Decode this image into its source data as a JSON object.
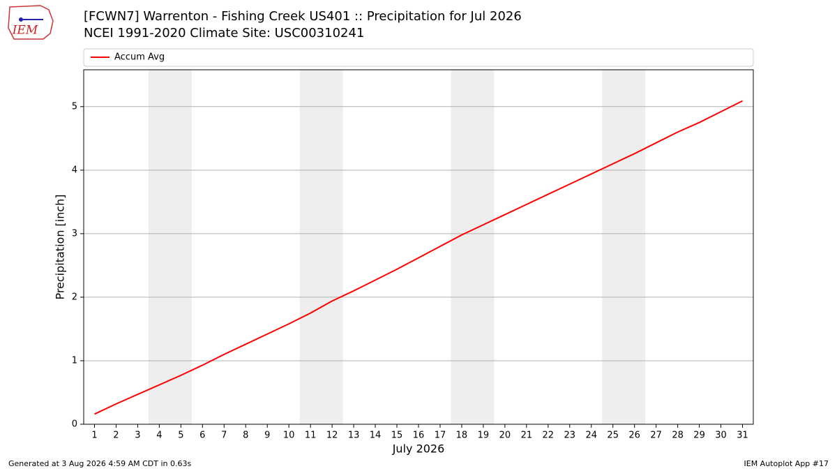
{
  "logo": "IEM",
  "footer": {
    "left": "Generated at 3 Aug 2026 4:59 AM CDT in 0.63s",
    "right": "IEM Autoplot App #17"
  },
  "chart_data": {
    "type": "line",
    "title": "[FCWN7] Warrenton - Fishing Creek US401 :: Precipitation for Jul 2026",
    "subtitle": "NCEI 1991-2020 Climate Site: USC00310241",
    "x_label": "July 2026",
    "y_label": "Precipitation [inch]",
    "x": [
      1,
      2,
      3,
      4,
      5,
      6,
      7,
      8,
      9,
      10,
      11,
      12,
      13,
      14,
      15,
      16,
      17,
      18,
      19,
      20,
      21,
      22,
      23,
      24,
      25,
      26,
      27,
      28,
      29,
      30,
      31
    ],
    "series": [
      {
        "name": "Accum Avg",
        "color": "#ff0000",
        "values": [
          0.16,
          0.32,
          0.47,
          0.62,
          0.77,
          0.93,
          1.1,
          1.26,
          1.42,
          1.58,
          1.75,
          1.94,
          2.1,
          2.27,
          2.44,
          2.62,
          2.8,
          2.98,
          3.14,
          3.3,
          3.46,
          3.62,
          3.78,
          3.94,
          4.1,
          4.26,
          4.43,
          4.6,
          4.75,
          4.92,
          5.09
        ]
      }
    ],
    "shaded_days": [
      [
        4,
        5
      ],
      [
        11,
        12
      ],
      [
        18,
        19
      ],
      [
        25,
        26
      ]
    ],
    "shade_color": "#eeeeee",
    "xlim": [
      0.5,
      31.5
    ],
    "ylim": [
      0,
      5.58
    ],
    "xticks": [
      1,
      2,
      3,
      4,
      5,
      6,
      7,
      8,
      9,
      10,
      11,
      12,
      13,
      14,
      15,
      16,
      17,
      18,
      19,
      20,
      21,
      22,
      23,
      24,
      25,
      26,
      27,
      28,
      29,
      30,
      31
    ],
    "yticks": [
      0,
      1,
      2,
      3,
      4,
      5
    ],
    "grid": "y",
    "legend": "upper left"
  }
}
